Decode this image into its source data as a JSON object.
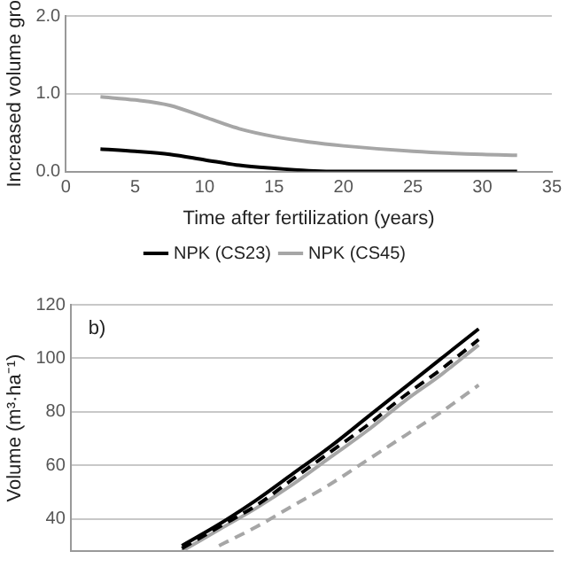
{
  "chart_data": [
    {
      "type": "line",
      "xlabel": "Time after fertilization (years)",
      "ylabel": "Increased volume gro",
      "xlim": [
        0,
        35
      ],
      "xticks": [
        0,
        5,
        10,
        15,
        20,
        25,
        30,
        35
      ],
      "ylim": [
        0,
        2
      ],
      "yticks": [
        {
          "value": 0,
          "label": "0.0"
        },
        {
          "value": 1,
          "label": "1.0"
        },
        {
          "value": 2,
          "label": "2.0"
        }
      ],
      "grid": "y",
      "legend": "bottom",
      "marker": "none",
      "series": [
        {
          "name": "NPK (CS23)",
          "color": "#000000",
          "x": [
            2.5,
            5,
            7.5,
            10,
            12.5,
            15,
            17.5,
            20,
            25,
            32.5
          ],
          "values": [
            0.29,
            0.26,
            0.22,
            0.15,
            0.08,
            0.04,
            0.01,
            0,
            0,
            0
          ]
        },
        {
          "name": "NPK (CS45)",
          "color": "#a6a6a6",
          "x": [
            2.5,
            5,
            7.5,
            10,
            12.5,
            15,
            17.5,
            20,
            25,
            30,
            32.5
          ],
          "values": [
            0.96,
            0.92,
            0.85,
            0.7,
            0.55,
            0.45,
            0.38,
            0.33,
            0.26,
            0.22,
            0.21
          ]
        }
      ]
    },
    {
      "type": "line",
      "ylabel": "Volume (m³·ha⁻¹)",
      "annotations": [
        "b)"
      ],
      "categories": [
        null,
        null,
        null,
        null,
        null,
        null,
        null,
        null,
        null,
        null,
        null,
        null,
        null,
        null
      ],
      "ylim": [
        28,
        120
      ],
      "yticks": [
        40,
        60,
        80,
        100,
        120
      ],
      "grid": "y",
      "legend": false,
      "marker": "none",
      "tick_labels": "y",
      "series": [
        {
          "color": "#000000",
          "line_style": "solid",
          "values": [
            null,
            null,
            null,
            30,
            38,
            47,
            57,
            67,
            78,
            89,
            100,
            111,
            null,
            null
          ]
        },
        {
          "color": "#000000",
          "line_style": "dashed",
          "values": [
            null,
            null,
            null,
            29,
            37,
            45,
            55,
            65,
            75,
            86,
            96,
            107,
            null,
            null
          ]
        },
        {
          "color": "#a6a6a6",
          "line_style": "solid",
          "values": [
            null,
            null,
            null,
            28,
            36,
            44,
            53,
            63,
            73,
            84,
            94,
            105,
            null,
            null
          ]
        },
        {
          "color": "#a6a6a6",
          "line_style": "dashed",
          "values": [
            null,
            null,
            null,
            null,
            30,
            37,
            45,
            53,
            62,
            71,
            80,
            90,
            null,
            null
          ]
        }
      ]
    }
  ]
}
